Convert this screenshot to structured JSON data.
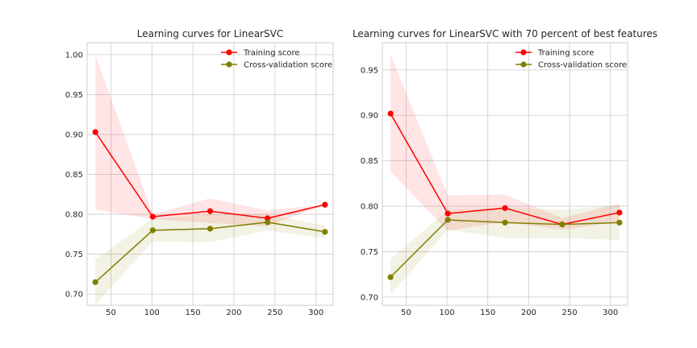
{
  "chart_data": [
    {
      "type": "line",
      "title": "Learning curves for LinearSVC",
      "xlabel": "",
      "ylabel": "",
      "x": [
        31,
        101,
        171,
        241,
        311
      ],
      "xticks": [
        50,
        100,
        150,
        200,
        250,
        300
      ],
      "xtick_labels": [
        "50",
        "100",
        "150",
        "200",
        "250",
        "300"
      ],
      "yticks": [
        0.7,
        0.75,
        0.8,
        0.85,
        0.9,
        0.95,
        1.0
      ],
      "ytick_labels": [
        "0.70",
        "0.75",
        "0.80",
        "0.85",
        "0.90",
        "0.95",
        "1.00"
      ],
      "xlim": [
        21,
        321
      ],
      "ylim": [
        0.686,
        1.015
      ],
      "grid": true,
      "legend_position": "top-right",
      "series": [
        {
          "name": "Training score",
          "color": "#ff0000",
          "values": [
            0.903,
            0.797,
            0.804,
            0.795,
            0.812
          ],
          "band_upper": [
            1.0,
            0.8,
            0.82,
            0.805,
            0.812
          ],
          "band_lower": [
            0.806,
            0.794,
            0.789,
            0.785,
            0.812
          ]
        },
        {
          "name": "Cross-validation score",
          "color": "#808000",
          "values": [
            0.715,
            0.78,
            0.782,
            0.79,
            0.778
          ],
          "band_upper": [
            0.743,
            0.795,
            0.8,
            0.8,
            0.786
          ],
          "band_lower": [
            0.687,
            0.766,
            0.765,
            0.78,
            0.77
          ]
        }
      ]
    },
    {
      "type": "line",
      "title": "Learning curves for LinearSVC with 70 percent of best features",
      "xlabel": "",
      "ylabel": "",
      "x": [
        31,
        101,
        171,
        241,
        311
      ],
      "xticks": [
        50,
        100,
        150,
        200,
        250,
        300
      ],
      "xtick_labels": [
        "50",
        "100",
        "150",
        "200",
        "250",
        "300"
      ],
      "yticks": [
        0.7,
        0.75,
        0.8,
        0.85,
        0.9,
        0.95
      ],
      "ytick_labels": [
        "0.70",
        "0.75",
        "0.80",
        "0.85",
        "0.90",
        "0.95"
      ],
      "xlim": [
        21,
        321
      ],
      "ylim": [
        0.691,
        0.98
      ],
      "grid": true,
      "legend_position": "top-right",
      "series": [
        {
          "name": "Training score",
          "color": "#ff0000",
          "values": [
            0.902,
            0.792,
            0.798,
            0.78,
            0.793
          ],
          "band_upper": [
            0.967,
            0.812,
            0.813,
            0.787,
            0.803
          ],
          "band_lower": [
            0.838,
            0.773,
            0.783,
            0.774,
            0.783
          ]
        },
        {
          "name": "Cross-validation score",
          "color": "#808000",
          "values": [
            0.722,
            0.785,
            0.782,
            0.78,
            0.782
          ],
          "band_upper": [
            0.742,
            0.796,
            0.799,
            0.796,
            0.801
          ],
          "band_lower": [
            0.703,
            0.774,
            0.765,
            0.765,
            0.763
          ]
        }
      ]
    }
  ]
}
